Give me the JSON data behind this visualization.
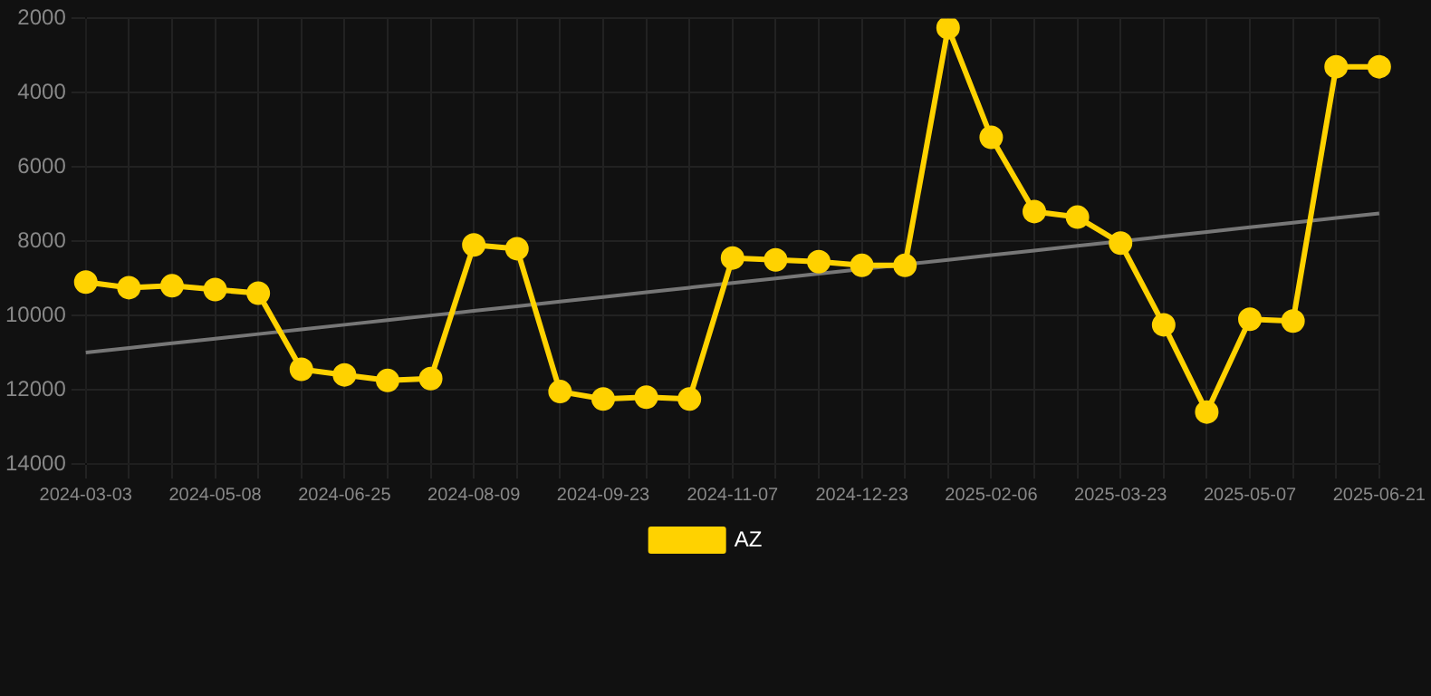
{
  "chart_data": {
    "type": "line",
    "categories": [
      "2024-03-03",
      null,
      null,
      "2024-05-08",
      null,
      null,
      "2024-06-25",
      null,
      null,
      "2024-08-09",
      null,
      null,
      "2024-09-23",
      null,
      null,
      "2024-11-07",
      null,
      null,
      "2024-12-23",
      null,
      null,
      "2025-02-06",
      null,
      null,
      "2025-03-23",
      null,
      null,
      "2025-05-07",
      null,
      null,
      "2025-06-21"
    ],
    "series": [
      {
        "name": "AZ",
        "color": "#ffd200",
        "marker": "circle",
        "values": [
          9100,
          9250,
          9200,
          9300,
          9400,
          11450,
          11600,
          11750,
          11700,
          8100,
          8200,
          12050,
          12250,
          12200,
          12250,
          8450,
          8500,
          8550,
          8650,
          8650,
          2250,
          5200,
          7200,
          7350,
          8050,
          10250,
          12600,
          10100,
          10150,
          3300,
          3300
        ]
      },
      {
        "type": "line",
        "color": "#777777",
        "marker": "none",
        "values": [
          11000,
          10875,
          10750,
          10625,
          10500,
          10375,
          10250,
          10125,
          10000,
          9875,
          9750,
          9625,
          9500,
          9375,
          9250,
          9125,
          9000,
          8875,
          8750,
          8625,
          8500,
          8375,
          8250,
          8125,
          8000,
          7875,
          7750,
          7625,
          7500,
          7375,
          7250
        ]
      }
    ],
    "ylim": [
      14000,
      2000
    ],
    "yticks": [
      2000,
      4000,
      6000,
      8000,
      10000,
      12000,
      14000
    ],
    "grid": true,
    "legend": "bottom"
  }
}
